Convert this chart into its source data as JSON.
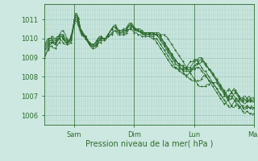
{
  "xlabel": "Pression niveau de la mer( hPa )",
  "background_color": "#cce8e0",
  "plot_bg_color": "#cce8e0",
  "grid_color_minor": "#b8d8d0",
  "grid_color_major": "#a0c8c0",
  "line_color": "#2d6b2d",
  "ylim": [
    1005.5,
    1011.8
  ],
  "yticks": [
    1006,
    1007,
    1008,
    1009,
    1010,
    1011
  ],
  "num_points": 169,
  "series": [
    [
      1009.6,
      1009.7,
      1009.8,
      1009.9,
      1010.0,
      1010.0,
      1010.1,
      1010.1,
      1010.0,
      1010.0,
      1010.1,
      1010.1,
      1010.1,
      1010.2,
      1010.2,
      1010.1,
      1010.0,
      1009.9,
      1009.8,
      1009.7,
      1009.7,
      1009.8,
      1010.0,
      1010.5,
      1011.0,
      1011.3,
      1011.3,
      1011.0,
      1010.8,
      1010.5,
      1010.3,
      1010.2,
      1010.1,
      1010.0,
      1009.9,
      1009.8,
      1009.7,
      1009.6,
      1009.6,
      1009.6,
      1009.6,
      1009.6,
      1009.7,
      1009.8,
      1009.9,
      1009.9,
      1010.0,
      1010.0,
      1010.0,
      1010.0,
      1010.1,
      1010.1,
      1010.1,
      1010.2,
      1010.2,
      1010.3,
      1010.4,
      1010.4,
      1010.4,
      1010.3,
      1010.3,
      1010.3,
      1010.3,
      1010.3,
      1010.3,
      1010.3,
      1010.4,
      1010.4,
      1010.5,
      1010.5,
      1010.6,
      1010.6,
      1010.6,
      1010.5,
      1010.5,
      1010.4,
      1010.4,
      1010.4,
      1010.3,
      1010.3,
      1010.3,
      1010.3,
      1010.3,
      1010.3,
      1010.3,
      1010.3,
      1010.3,
      1010.3,
      1010.3,
      1010.3,
      1010.3,
      1010.3,
      1010.3,
      1010.2,
      1010.2,
      1010.2,
      1010.2,
      1010.1,
      1010.1,
      1010.0,
      1009.9,
      1009.8,
      1009.7,
      1009.6,
      1009.5,
      1009.4,
      1009.3,
      1009.2,
      1009.1,
      1009.0,
      1008.9,
      1008.8,
      1008.7,
      1008.6,
      1008.5,
      1008.4,
      1008.3,
      1008.2,
      1008.1,
      1008.0,
      1007.9,
      1007.8,
      1007.7,
      1007.6,
      1007.5,
      1007.5,
      1007.5,
      1007.5,
      1007.5,
      1007.5,
      1007.6,
      1007.6,
      1007.6,
      1007.7,
      1007.7,
      1007.7,
      1007.7,
      1007.7,
      1007.7,
      1007.6,
      1007.5,
      1007.4,
      1007.3,
      1007.2,
      1007.1,
      1007.0,
      1006.9,
      1006.8,
      1006.7,
      1006.6,
      1006.5,
      1006.4,
      1006.4,
      1006.5,
      1006.6,
      1006.6,
      1006.5,
      1006.4,
      1006.3,
      1006.2,
      1006.1,
      1006.1,
      1006.2,
      1006.2,
      1006.1,
      1006.1,
      1006.1,
      1006.0,
      1006.1
    ],
    [
      1009.7,
      1009.8,
      1009.9,
      1010.0,
      1010.0,
      1010.0,
      1010.0,
      1010.0,
      1009.9,
      1009.9,
      1010.0,
      1010.1,
      1010.2,
      1010.3,
      1010.4,
      1010.4,
      1010.3,
      1010.2,
      1010.0,
      1009.9,
      1009.9,
      1010.0,
      1010.2,
      1010.6,
      1011.0,
      1011.3,
      1011.3,
      1011.1,
      1010.8,
      1010.5,
      1010.3,
      1010.2,
      1010.1,
      1010.1,
      1010.0,
      1009.9,
      1009.8,
      1009.7,
      1009.7,
      1009.7,
      1009.7,
      1009.8,
      1009.9,
      1010.0,
      1010.1,
      1010.1,
      1010.1,
      1010.0,
      1010.0,
      1010.0,
      1010.1,
      1010.2,
      1010.3,
      1010.4,
      1010.5,
      1010.6,
      1010.7,
      1010.7,
      1010.6,
      1010.5,
      1010.4,
      1010.4,
      1010.4,
      1010.5,
      1010.5,
      1010.5,
      1010.6,
      1010.7,
      1010.8,
      1010.8,
      1010.8,
      1010.7,
      1010.6,
      1010.5,
      1010.5,
      1010.5,
      1010.5,
      1010.5,
      1010.4,
      1010.4,
      1010.3,
      1010.3,
      1010.3,
      1010.3,
      1010.3,
      1010.3,
      1010.3,
      1010.3,
      1010.2,
      1010.2,
      1010.2,
      1010.2,
      1010.2,
      1010.1,
      1010.0,
      1009.9,
      1009.8,
      1009.7,
      1009.6,
      1009.5,
      1009.4,
      1009.3,
      1009.2,
      1009.1,
      1009.0,
      1008.9,
      1008.8,
      1008.7,
      1008.6,
      1008.5,
      1008.4,
      1008.3,
      1008.2,
      1008.1,
      1008.0,
      1008.0,
      1007.9,
      1007.9,
      1007.8,
      1007.8,
      1007.8,
      1007.8,
      1007.8,
      1007.8,
      1007.8,
      1007.8,
      1007.9,
      1008.0,
      1008.1,
      1008.0,
      1008.0,
      1007.9,
      1007.8,
      1007.8,
      1007.7,
      1007.7,
      1007.6,
      1007.5,
      1007.4,
      1007.3,
      1007.2,
      1007.1,
      1007.0,
      1006.9,
      1006.8,
      1006.7,
      1006.6,
      1006.5,
      1006.4,
      1006.4,
      1006.5,
      1006.6,
      1006.7,
      1006.8,
      1006.9,
      1006.8,
      1006.7,
      1006.6,
      1006.5,
      1006.4,
      1006.3,
      1006.3,
      1006.4,
      1006.5,
      1006.4,
      1006.4,
      1006.4,
      1006.3,
      1006.4
    ],
    [
      1009.0,
      1009.1,
      1009.3,
      1009.5,
      1009.6,
      1009.7,
      1009.8,
      1009.8,
      1009.7,
      1009.7,
      1009.8,
      1009.9,
      1010.0,
      1010.1,
      1010.1,
      1010.0,
      1009.9,
      1009.8,
      1009.8,
      1009.8,
      1009.9,
      1010.0,
      1010.2,
      1010.5,
      1010.8,
      1011.0,
      1011.0,
      1010.8,
      1010.6,
      1010.4,
      1010.3,
      1010.3,
      1010.2,
      1010.1,
      1010.0,
      1009.9,
      1009.8,
      1009.7,
      1009.6,
      1009.6,
      1009.6,
      1009.6,
      1009.7,
      1009.8,
      1009.9,
      1010.0,
      1010.0,
      1010.0,
      1010.0,
      1010.0,
      1010.1,
      1010.2,
      1010.3,
      1010.4,
      1010.5,
      1010.6,
      1010.6,
      1010.6,
      1010.5,
      1010.4,
      1010.4,
      1010.4,
      1010.4,
      1010.4,
      1010.4,
      1010.4,
      1010.5,
      1010.6,
      1010.6,
      1010.6,
      1010.6,
      1010.6,
      1010.5,
      1010.4,
      1010.4,
      1010.4,
      1010.4,
      1010.4,
      1010.3,
      1010.3,
      1010.2,
      1010.2,
      1010.2,
      1010.2,
      1010.3,
      1010.3,
      1010.3,
      1010.3,
      1010.2,
      1010.2,
      1010.2,
      1010.2,
      1010.2,
      1010.1,
      1010.0,
      1009.9,
      1009.8,
      1009.7,
      1009.6,
      1009.5,
      1009.4,
      1009.3,
      1009.2,
      1009.1,
      1009.0,
      1008.9,
      1008.8,
      1008.7,
      1008.7,
      1008.6,
      1008.6,
      1008.5,
      1008.5,
      1008.4,
      1008.4,
      1008.4,
      1008.4,
      1008.4,
      1008.4,
      1008.4,
      1008.5,
      1008.6,
      1008.6,
      1008.7,
      1008.7,
      1008.7,
      1008.8,
      1008.8,
      1008.8,
      1008.7,
      1008.6,
      1008.5,
      1008.4,
      1008.4,
      1008.3,
      1008.2,
      1008.1,
      1008.0,
      1007.9,
      1007.8,
      1007.7,
      1007.6,
      1007.5,
      1007.4,
      1007.3,
      1007.2,
      1007.1,
      1007.0,
      1006.9,
      1006.8,
      1006.9,
      1007.0,
      1007.1,
      1007.2,
      1007.2,
      1007.1,
      1007.0,
      1006.9,
      1006.8,
      1006.7,
      1006.6,
      1006.6,
      1006.7,
      1006.8,
      1006.7,
      1006.7,
      1006.8,
      1006.7,
      1006.7
    ],
    [
      1009.5,
      1009.6,
      1009.7,
      1009.8,
      1009.9,
      1009.9,
      1009.9,
      1009.9,
      1009.8,
      1009.8,
      1009.9,
      1010.0,
      1010.1,
      1010.2,
      1010.2,
      1010.2,
      1010.1,
      1010.0,
      1009.9,
      1009.8,
      1009.8,
      1009.9,
      1010.1,
      1010.4,
      1010.8,
      1011.1,
      1011.1,
      1010.9,
      1010.7,
      1010.5,
      1010.4,
      1010.3,
      1010.2,
      1010.1,
      1010.0,
      1009.9,
      1009.8,
      1009.7,
      1009.7,
      1009.7,
      1009.7,
      1009.8,
      1009.9,
      1010.0,
      1010.0,
      1010.1,
      1010.1,
      1010.0,
      1010.0,
      1010.0,
      1010.1,
      1010.2,
      1010.3,
      1010.4,
      1010.5,
      1010.6,
      1010.6,
      1010.6,
      1010.5,
      1010.4,
      1010.4,
      1010.4,
      1010.4,
      1010.4,
      1010.4,
      1010.4,
      1010.5,
      1010.6,
      1010.7,
      1010.7,
      1010.7,
      1010.6,
      1010.5,
      1010.5,
      1010.5,
      1010.4,
      1010.4,
      1010.4,
      1010.3,
      1010.3,
      1010.3,
      1010.3,
      1010.3,
      1010.3,
      1010.3,
      1010.3,
      1010.2,
      1010.2,
      1010.2,
      1010.2,
      1010.2,
      1010.1,
      1010.0,
      1009.9,
      1009.8,
      1009.7,
      1009.6,
      1009.5,
      1009.4,
      1009.3,
      1009.2,
      1009.1,
      1009.0,
      1008.9,
      1008.8,
      1008.7,
      1008.6,
      1008.6,
      1008.5,
      1008.5,
      1008.4,
      1008.4,
      1008.3,
      1008.3,
      1008.3,
      1008.3,
      1008.3,
      1008.3,
      1008.4,
      1008.5,
      1008.6,
      1008.6,
      1008.7,
      1008.7,
      1008.8,
      1008.9,
      1008.9,
      1008.8,
      1008.7,
      1008.6,
      1008.5,
      1008.5,
      1008.4,
      1008.3,
      1008.2,
      1008.1,
      1008.0,
      1007.9,
      1007.8,
      1007.7,
      1007.6,
      1007.5,
      1007.4,
      1007.3,
      1007.2,
      1007.1,
      1007.0,
      1006.9,
      1007.0,
      1007.1,
      1007.2,
      1007.3,
      1007.3,
      1007.2,
      1007.1,
      1007.0,
      1006.9,
      1006.8,
      1006.7,
      1006.7,
      1006.8,
      1006.8,
      1006.7,
      1006.7,
      1006.8,
      1006.8,
      1006.7,
      1006.7,
      1006.7
    ],
    [
      1009.3,
      1009.4,
      1009.5,
      1009.6,
      1009.7,
      1009.8,
      1009.8,
      1009.8,
      1009.7,
      1009.7,
      1009.8,
      1009.9,
      1010.0,
      1010.1,
      1010.1,
      1010.0,
      1009.9,
      1009.8,
      1009.8,
      1009.8,
      1009.9,
      1010.0,
      1010.2,
      1010.5,
      1010.9,
      1011.2,
      1011.2,
      1011.0,
      1010.7,
      1010.5,
      1010.3,
      1010.2,
      1010.1,
      1010.1,
      1010.0,
      1009.9,
      1009.8,
      1009.7,
      1009.6,
      1009.6,
      1009.6,
      1009.6,
      1009.7,
      1009.8,
      1009.9,
      1010.0,
      1010.0,
      1010.0,
      1010.0,
      1010.0,
      1010.1,
      1010.2,
      1010.3,
      1010.4,
      1010.5,
      1010.6,
      1010.6,
      1010.6,
      1010.5,
      1010.4,
      1010.3,
      1010.3,
      1010.3,
      1010.4,
      1010.4,
      1010.4,
      1010.5,
      1010.6,
      1010.7,
      1010.7,
      1010.7,
      1010.6,
      1010.5,
      1010.4,
      1010.4,
      1010.4,
      1010.4,
      1010.3,
      1010.3,
      1010.2,
      1010.2,
      1010.2,
      1010.2,
      1010.2,
      1010.2,
      1010.2,
      1010.2,
      1010.2,
      1010.2,
      1010.2,
      1010.2,
      1010.1,
      1010.1,
      1010.0,
      1009.9,
      1009.8,
      1009.7,
      1009.6,
      1009.5,
      1009.4,
      1009.3,
      1009.2,
      1009.1,
      1009.0,
      1008.9,
      1008.8,
      1008.8,
      1008.7,
      1008.7,
      1008.6,
      1008.6,
      1008.6,
      1008.5,
      1008.5,
      1008.5,
      1008.5,
      1008.5,
      1008.5,
      1008.6,
      1008.7,
      1008.8,
      1008.8,
      1008.9,
      1008.9,
      1009.0,
      1009.0,
      1009.0,
      1008.9,
      1008.8,
      1008.7,
      1008.6,
      1008.5,
      1008.4,
      1008.3,
      1008.2,
      1008.1,
      1008.0,
      1007.9,
      1007.8,
      1007.7,
      1007.6,
      1007.5,
      1007.4,
      1007.3,
      1007.2,
      1007.1,
      1007.0,
      1006.9,
      1007.0,
      1007.1,
      1007.2,
      1007.3,
      1007.4,
      1007.3,
      1007.2,
      1007.1,
      1007.0,
      1006.9,
      1006.9,
      1006.9,
      1007.0,
      1007.0,
      1006.9,
      1006.9,
      1007.0,
      1006.9,
      1006.9,
      1006.9,
      1006.9
    ],
    [
      1009.1,
      1009.2,
      1009.3,
      1009.4,
      1009.5,
      1009.6,
      1009.6,
      1009.5,
      1009.5,
      1009.5,
      1009.6,
      1009.7,
      1009.8,
      1009.9,
      1009.9,
      1009.8,
      1009.7,
      1009.7,
      1009.7,
      1009.8,
      1009.9,
      1010.1,
      1010.3,
      1010.6,
      1010.8,
      1010.9,
      1010.9,
      1010.7,
      1010.5,
      1010.3,
      1010.2,
      1010.1,
      1010.1,
      1010.0,
      1009.9,
      1009.8,
      1009.7,
      1009.6,
      1009.5,
      1009.5,
      1009.5,
      1009.5,
      1009.6,
      1009.7,
      1009.8,
      1009.8,
      1009.9,
      1009.9,
      1009.9,
      1009.9,
      1010.0,
      1010.1,
      1010.2,
      1010.2,
      1010.3,
      1010.4,
      1010.4,
      1010.4,
      1010.3,
      1010.2,
      1010.2,
      1010.2,
      1010.2,
      1010.2,
      1010.2,
      1010.2,
      1010.3,
      1010.4,
      1010.5,
      1010.5,
      1010.5,
      1010.4,
      1010.3,
      1010.3,
      1010.3,
      1010.2,
      1010.2,
      1010.2,
      1010.1,
      1010.1,
      1010.1,
      1010.1,
      1010.1,
      1010.1,
      1010.1,
      1010.1,
      1010.0,
      1010.0,
      1010.0,
      1010.0,
      1010.0,
      1009.9,
      1009.8,
      1009.7,
      1009.6,
      1009.5,
      1009.4,
      1009.3,
      1009.2,
      1009.1,
      1009.0,
      1008.9,
      1008.8,
      1008.7,
      1008.6,
      1008.5,
      1008.4,
      1008.4,
      1008.3,
      1008.3,
      1008.2,
      1008.2,
      1008.1,
      1008.1,
      1008.1,
      1008.1,
      1008.2,
      1008.3,
      1008.3,
      1008.4,
      1008.4,
      1008.4,
      1008.5,
      1008.5,
      1008.5,
      1008.4,
      1008.3,
      1008.2,
      1008.2,
      1008.1,
      1008.0,
      1007.9,
      1007.8,
      1007.7,
      1007.6,
      1007.5,
      1007.4,
      1007.3,
      1007.2,
      1007.1,
      1007.0,
      1006.9,
      1006.8,
      1006.7,
      1006.6,
      1006.6,
      1006.7,
      1006.8,
      1006.9,
      1007.0,
      1007.0,
      1006.9,
      1006.8,
      1006.7,
      1006.6,
      1006.5,
      1006.4,
      1006.4,
      1006.5,
      1006.5,
      1006.4,
      1006.4,
      1006.5,
      1006.4,
      1006.4,
      1006.4,
      1006.5,
      1006.4,
      1006.4
    ],
    [
      1009.4,
      1009.5,
      1009.6,
      1009.7,
      1009.8,
      1009.9,
      1009.9,
      1009.8,
      1009.8,
      1009.8,
      1009.9,
      1010.0,
      1010.0,
      1010.1,
      1010.1,
      1010.0,
      1009.9,
      1009.8,
      1009.8,
      1009.8,
      1009.9,
      1010.0,
      1010.2,
      1010.5,
      1010.9,
      1011.2,
      1011.2,
      1011.0,
      1010.8,
      1010.5,
      1010.3,
      1010.2,
      1010.1,
      1010.0,
      1009.9,
      1009.8,
      1009.7,
      1009.6,
      1009.6,
      1009.6,
      1009.6,
      1009.7,
      1009.8,
      1009.9,
      1010.0,
      1010.0,
      1010.0,
      1010.0,
      1010.0,
      1010.0,
      1010.1,
      1010.2,
      1010.3,
      1010.4,
      1010.5,
      1010.6,
      1010.6,
      1010.6,
      1010.5,
      1010.4,
      1010.4,
      1010.4,
      1010.4,
      1010.4,
      1010.4,
      1010.4,
      1010.5,
      1010.6,
      1010.7,
      1010.7,
      1010.7,
      1010.6,
      1010.5,
      1010.5,
      1010.4,
      1010.4,
      1010.4,
      1010.3,
      1010.3,
      1010.2,
      1010.2,
      1010.2,
      1010.2,
      1010.2,
      1010.2,
      1010.2,
      1010.1,
      1010.1,
      1010.0,
      1009.9,
      1009.8,
      1009.7,
      1009.6,
      1009.5,
      1009.4,
      1009.3,
      1009.2,
      1009.1,
      1009.0,
      1008.9,
      1008.8,
      1008.7,
      1008.6,
      1008.5,
      1008.5,
      1008.5,
      1008.5,
      1008.4,
      1008.4,
      1008.4,
      1008.4,
      1008.4,
      1008.4,
      1008.4,
      1008.5,
      1008.6,
      1008.7,
      1008.8,
      1008.8,
      1008.8,
      1008.9,
      1008.9,
      1008.9,
      1008.8,
      1008.7,
      1008.6,
      1008.5,
      1008.4,
      1008.3,
      1008.3,
      1008.2,
      1008.1,
      1008.0,
      1007.9,
      1007.8,
      1007.7,
      1007.6,
      1007.5,
      1007.4,
      1007.3,
      1007.2,
      1007.1,
      1007.0,
      1006.9,
      1007.0,
      1007.1,
      1007.2,
      1007.3,
      1007.4,
      1007.3,
      1007.2,
      1007.1,
      1007.0,
      1006.9,
      1006.8,
      1006.7,
      1006.8,
      1006.9,
      1006.8,
      1006.8,
      1006.9,
      1006.8,
      1006.8,
      1006.8,
      1006.8,
      1006.8,
      1006.8,
      1006.8,
      1006.8
    ]
  ]
}
